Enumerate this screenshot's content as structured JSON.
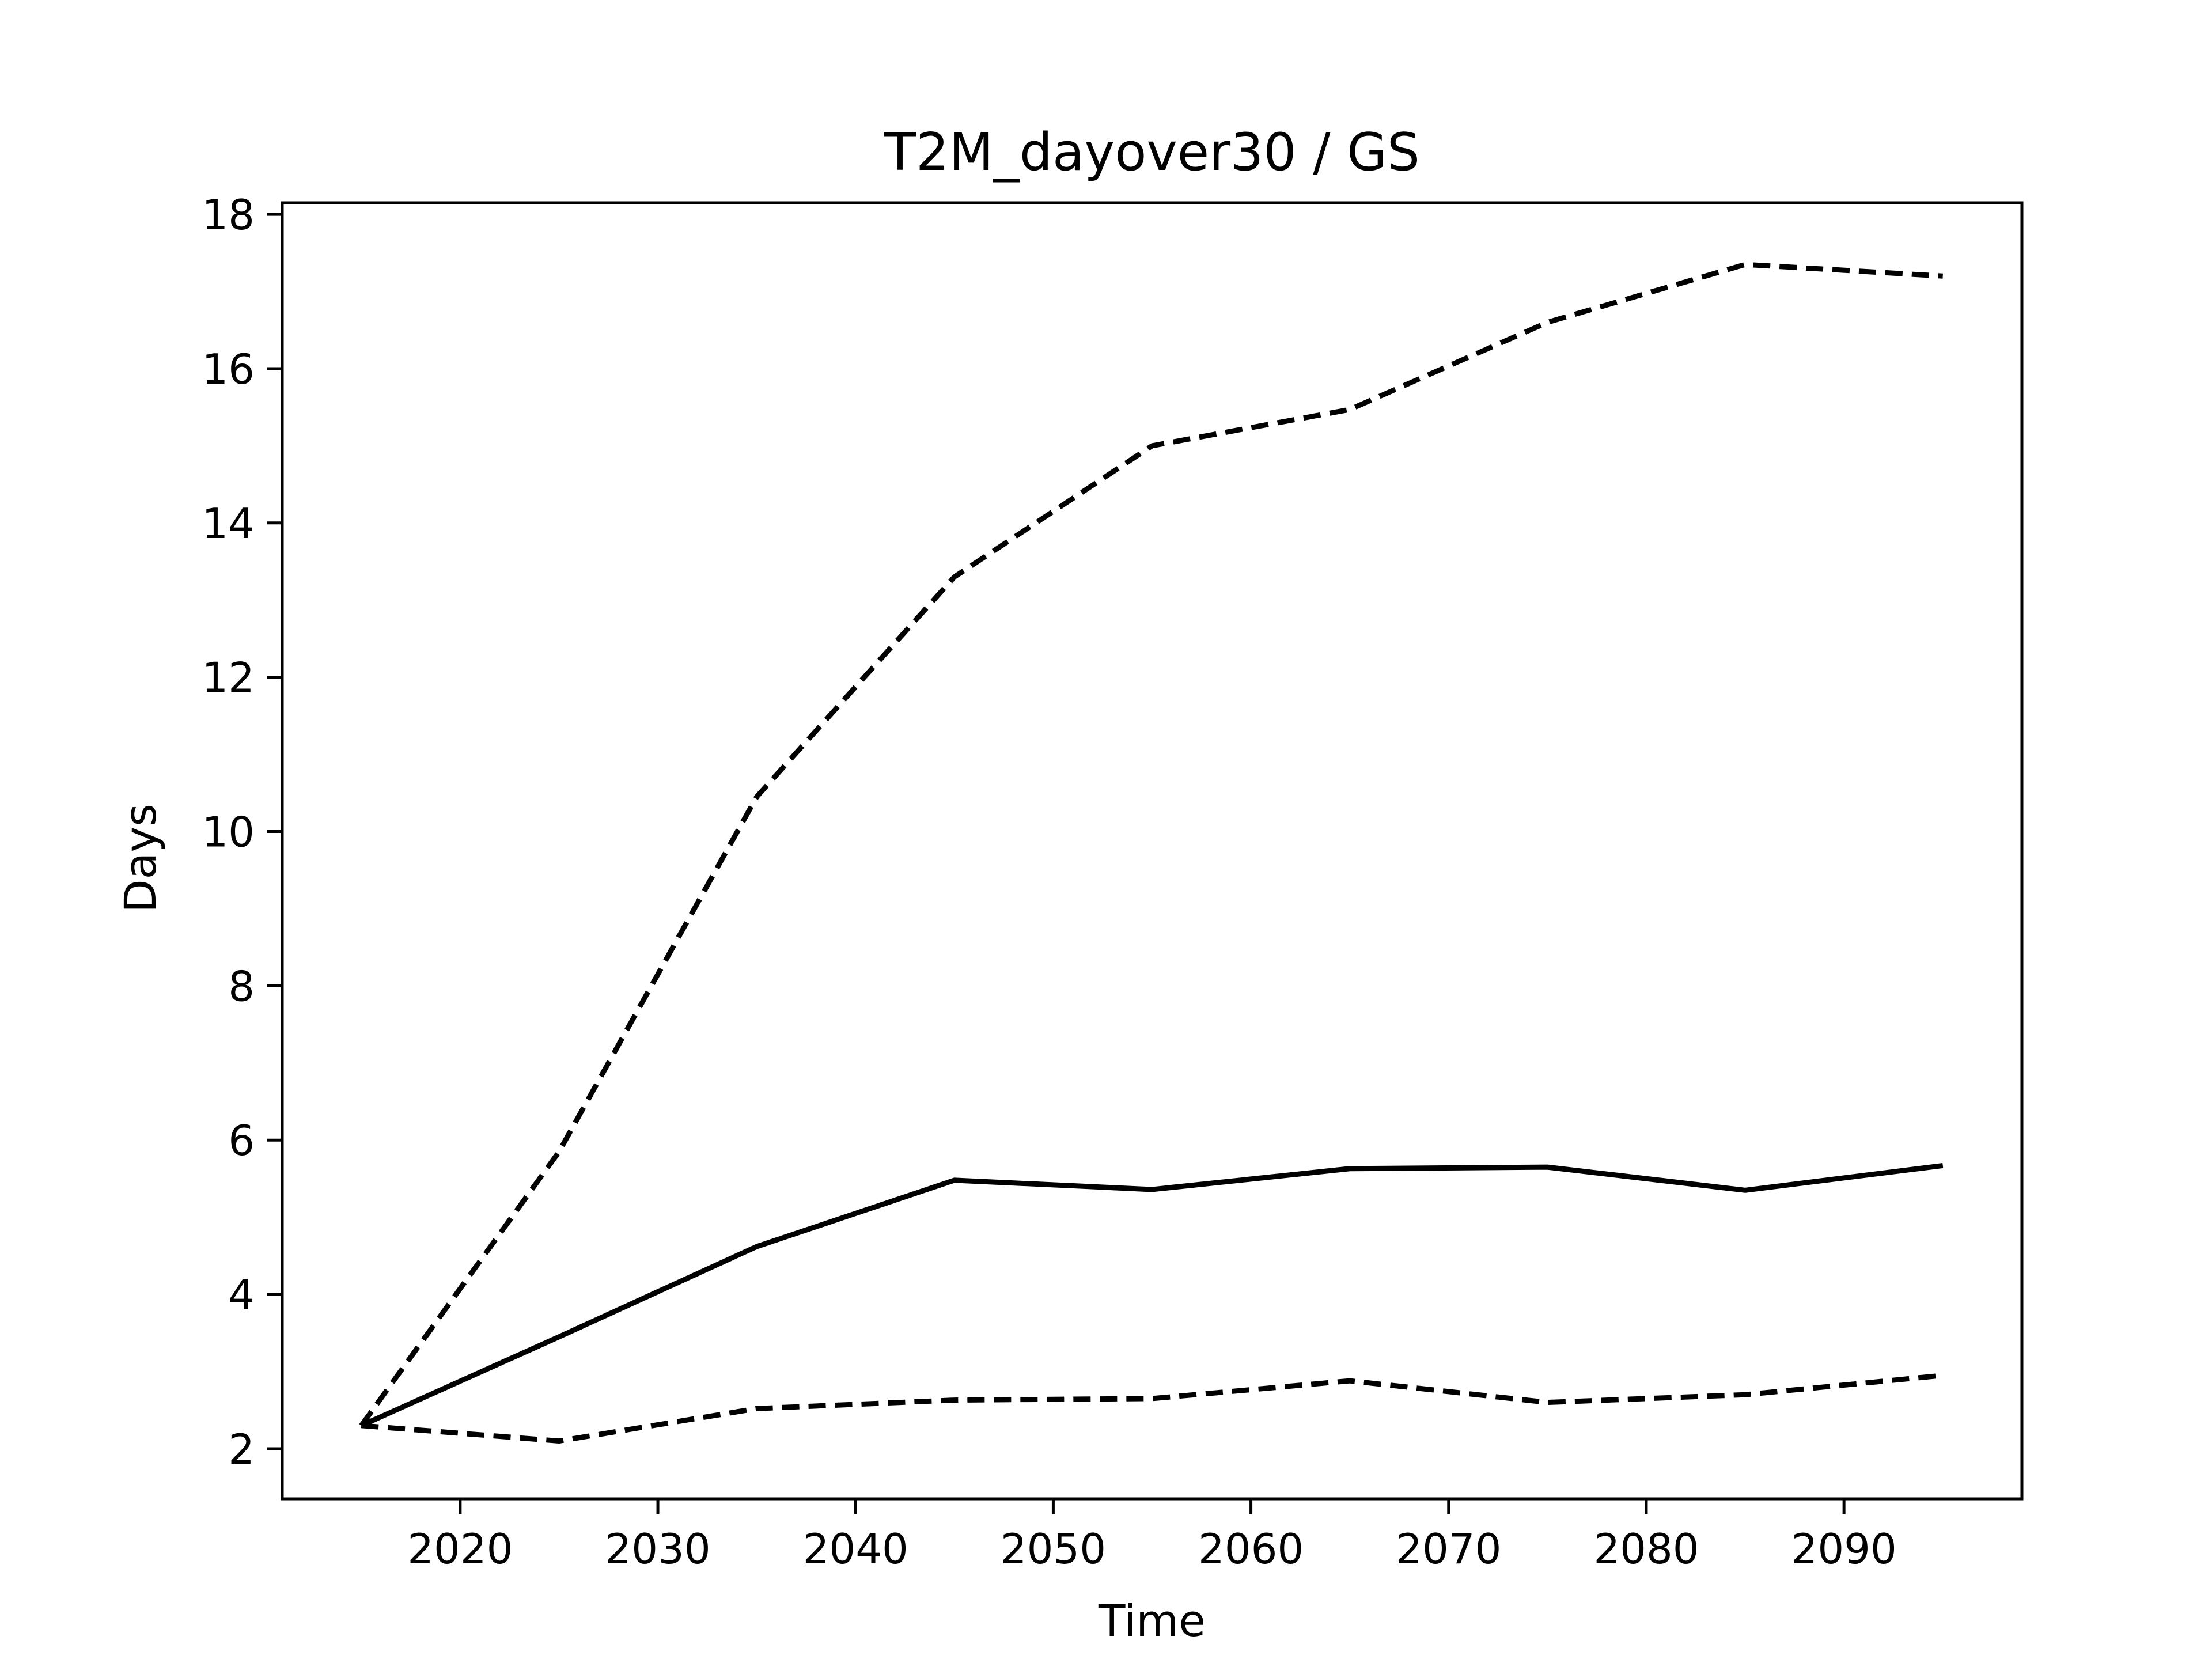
{
  "chart_data": {
    "type": "line",
    "title": "T2M_dayover30 / GS",
    "xlabel": "Time",
    "ylabel": "Days",
    "xlim": [
      2011,
      2099
    ],
    "ylim": [
      1.35,
      18.15
    ],
    "xticks": [
      2020,
      2030,
      2040,
      2050,
      2060,
      2070,
      2080,
      2090
    ],
    "yticks": [
      2,
      4,
      6,
      8,
      10,
      12,
      14,
      16,
      18
    ],
    "grid": false,
    "x": [
      2015,
      2025,
      2035,
      2045,
      2055,
      2065,
      2075,
      2085,
      2095
    ],
    "series": [
      {
        "style": "dashed",
        "color": "#000000",
        "values": [
          2.3,
          5.85,
          10.45,
          13.3,
          15.0,
          15.47,
          16.6,
          17.35,
          17.2
        ]
      },
      {
        "style": "solid",
        "color": "#000000",
        "values": [
          2.3,
          3.45,
          4.62,
          5.48,
          5.36,
          5.63,
          5.65,
          5.35,
          5.67
        ]
      },
      {
        "style": "dashed",
        "color": "#000000",
        "values": [
          2.3,
          2.1,
          2.52,
          2.63,
          2.65,
          2.88,
          2.6,
          2.7,
          2.95
        ]
      }
    ]
  }
}
